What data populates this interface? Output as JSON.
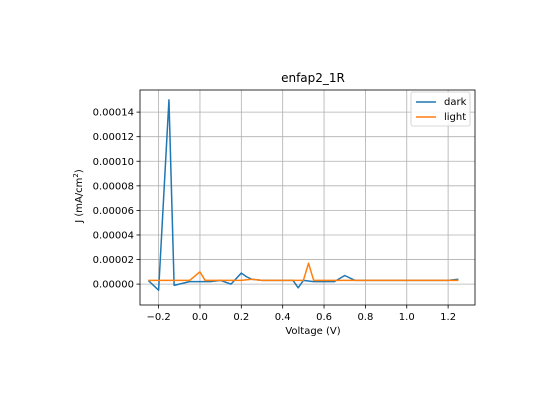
{
  "chart_data": {
    "type": "line",
    "title": "enfap2_1R",
    "xlabel": "Voltage (V)",
    "ylabel_main": "J (mA/cm",
    "ylabel_sup": "2",
    "ylabel_close": ")",
    "xlim": [
      -0.29,
      1.33
    ],
    "ylim": [
      -1.7e-05,
      0.000158
    ],
    "xticks": [
      -0.2,
      0.0,
      0.2,
      0.4,
      0.6,
      0.8,
      1.0,
      1.2
    ],
    "xtick_labels": [
      "−0.2",
      "0.0",
      "0.2",
      "0.4",
      "0.6",
      "0.8",
      "1.0",
      "1.2"
    ],
    "yticks": [
      0,
      2e-05,
      4e-05,
      6e-05,
      8e-05,
      0.0001,
      0.00012,
      0.00014
    ],
    "ytick_labels": [
      "0.00000",
      "0.00002",
      "0.00004",
      "0.00006",
      "0.00008",
      "0.00010",
      "0.00012",
      "0.00014"
    ],
    "grid": true,
    "legend_position": "top-right",
    "series": [
      {
        "name": "dark",
        "color": "#1f77b4",
        "x": [
          -0.25,
          -0.2,
          -0.15,
          -0.125,
          -0.1,
          -0.05,
          0.0,
          0.05,
          0.1,
          0.15,
          0.2,
          0.225,
          0.25,
          0.3,
          0.35,
          0.4,
          0.45,
          0.475,
          0.5,
          0.55,
          0.6,
          0.65,
          0.7,
          0.75,
          0.8,
          0.85,
          0.9,
          0.95,
          1.0,
          1.05,
          1.1,
          1.15,
          1.2,
          1.25
        ],
        "values": [
          3e-06,
          -5e-06,
          0.00015,
          -1e-06,
          0.0,
          2e-06,
          2e-06,
          2e-06,
          3e-06,
          0.0,
          9e-06,
          6e-06,
          4e-06,
          3e-06,
          3e-06,
          3e-06,
          3e-06,
          -3e-06,
          3e-06,
          2e-06,
          2e-06,
          2e-06,
          7e-06,
          3e-06,
          3e-06,
          3e-06,
          3e-06,
          3e-06,
          3e-06,
          3e-06,
          3e-06,
          3e-06,
          3e-06,
          4e-06
        ]
      },
      {
        "name": "light",
        "color": "#ff7f0e",
        "x": [
          -0.25,
          -0.2,
          -0.15,
          -0.1,
          -0.05,
          0.0,
          0.025,
          0.05,
          0.1,
          0.15,
          0.2,
          0.25,
          0.3,
          0.35,
          0.4,
          0.45,
          0.5,
          0.525,
          0.55,
          0.6,
          0.65,
          0.7,
          0.75,
          0.8,
          0.85,
          0.9,
          0.95,
          1.0,
          1.05,
          1.1,
          1.15,
          1.2,
          1.25
        ],
        "values": [
          3e-06,
          3e-06,
          3e-06,
          3e-06,
          3e-06,
          1e-05,
          3e-06,
          3e-06,
          3e-06,
          3e-06,
          3e-06,
          4e-06,
          3e-06,
          3e-06,
          3e-06,
          3e-06,
          3e-06,
          1.7e-05,
          3e-06,
          3e-06,
          3e-06,
          3e-06,
          3e-06,
          3e-06,
          3e-06,
          3e-06,
          3e-06,
          3e-06,
          3e-06,
          3e-06,
          3e-06,
          3e-06,
          3e-06
        ]
      }
    ]
  }
}
